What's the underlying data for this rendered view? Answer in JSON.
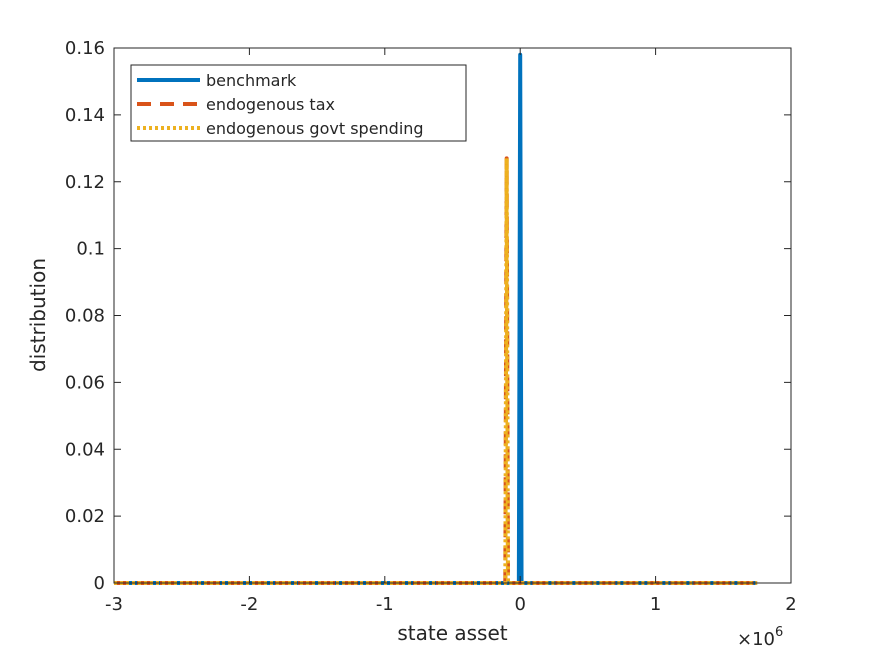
{
  "chart_data": {
    "type": "line",
    "xlabel": "state asset",
    "ylabel": "distribution",
    "x_multiplier": "×10",
    "x_multiplier_exp": "6",
    "xlim": [
      -3,
      2
    ],
    "ylim": [
      0,
      0.16
    ],
    "xticks": [
      -3,
      -2,
      -1,
      0,
      1,
      2
    ],
    "xtick_labels": [
      "-3",
      "-2",
      "-1",
      "0",
      "1",
      "2"
    ],
    "yticks": [
      0,
      0.02,
      0.04,
      0.06,
      0.08,
      0.1,
      0.12,
      0.14,
      0.16
    ],
    "ytick_labels": [
      "0",
      "0.02",
      "0.04",
      "0.06",
      "0.08",
      "0.1",
      "0.12",
      "0.14",
      "0.16"
    ],
    "grid": false,
    "legend_position": "top-left",
    "series": [
      {
        "name": "benchmark",
        "color": "#0072BD",
        "style": "solid",
        "x": [
          -3,
          -0.02,
          -0.01,
          0,
          0.01,
          0.02,
          1.75
        ],
        "y": [
          0,
          0,
          0,
          0.158,
          0,
          0,
          0
        ]
      },
      {
        "name": "endogenous tax",
        "color": "#D95319",
        "style": "dashed",
        "x": [
          -3,
          -0.11,
          -0.1,
          -0.09,
          -0.08,
          1.75
        ],
        "y": [
          0,
          0,
          0.127,
          0,
          0,
          0
        ]
      },
      {
        "name": "endogenous govt spending",
        "color": "#EDB120",
        "style": "dotted",
        "x": [
          -3,
          -0.11,
          -0.1,
          -0.09,
          -0.08,
          1.75
        ],
        "y": [
          0,
          0,
          0.127,
          0,
          0,
          0
        ]
      }
    ]
  }
}
